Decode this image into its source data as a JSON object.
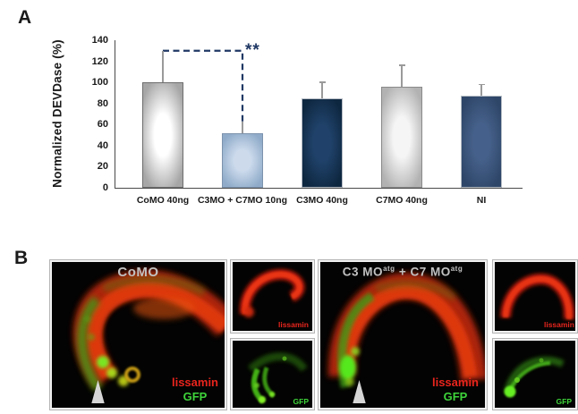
{
  "figure": {
    "panel_a_label": "A",
    "panel_b_label": "B"
  },
  "chart_data": {
    "type": "bar",
    "title": "",
    "xlabel": "",
    "ylabel": "Normalized DEVDase (%)",
    "ylim": [
      0,
      140
    ],
    "yticks": [
      0,
      20,
      40,
      60,
      80,
      100,
      120,
      140
    ],
    "grid": false,
    "categories": [
      "CoMO 40ng",
      "C3MO + C7MO 10ng",
      "C3MO 40ng",
      "C7MO 40ng",
      "NI"
    ],
    "values": [
      100,
      52,
      85,
      96,
      87
    ],
    "error_top": [
      130,
      63,
      100,
      116,
      98
    ],
    "error_caps": [
      false,
      false,
      true,
      true,
      true
    ],
    "error_color": "#9a9a9a",
    "axis_color": "#4a4a4a",
    "bar_styles": [
      {
        "center": "#ffffff",
        "edge": "#a6a6a6",
        "border": "#6e6e6e"
      },
      {
        "center": "#ccdaec",
        "edge": "#8fabc9",
        "border": "#7d93ad"
      },
      {
        "center": "#20426a",
        "edge": "#0e2740",
        "border": "#b5bcc4"
      },
      {
        "center": "#f5f5f5",
        "edge": "#b2b2b2",
        "border": "#8a8a8a"
      },
      {
        "center": "#45608a",
        "edge": "#2e4668",
        "border": "#b5bcc4"
      }
    ],
    "significance": {
      "label": "**",
      "from_index": 0,
      "to_index": 1,
      "level": 130,
      "drop_to": 63,
      "color": "#1f3864"
    }
  },
  "panel_b": {
    "colors": {
      "lissamin_text": "#e8251d",
      "gfp_text": "#3ed43a",
      "title_text": "#c2c2c2"
    },
    "groups": [
      {
        "title": {
          "t1": "CoMO",
          "sup1": "",
          "t2": "",
          "sup2": ""
        },
        "merge_labels": {
          "lissamin": "lissamin",
          "gfp": "GFP"
        },
        "insets": [
          {
            "label": "lissamin"
          },
          {
            "label": "GFP"
          }
        ]
      },
      {
        "title": {
          "t1": "C3 MO",
          "sup1": "atg",
          "t2": " + C7 MO",
          "sup2": "atg"
        },
        "merge_labels": {
          "lissamin": "lissamin",
          "gfp": "GFP"
        },
        "insets": [
          {
            "label": "lissamin"
          },
          {
            "label": "GFP"
          }
        ]
      }
    ]
  }
}
